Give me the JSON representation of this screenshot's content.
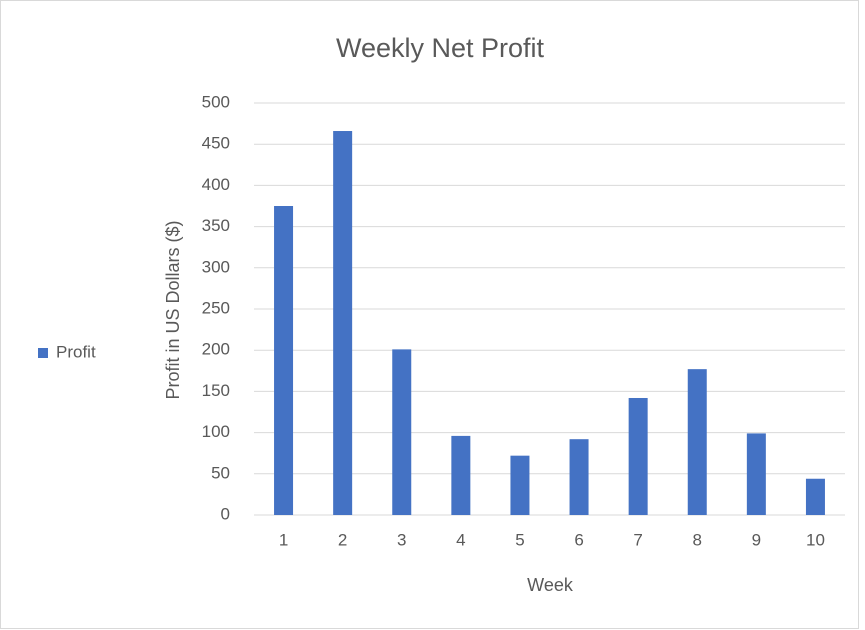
{
  "chart_data": {
    "type": "bar",
    "title": "Weekly Net Profit",
    "x_label": "Week",
    "y_label": "Profit in US Dollars ($)",
    "categories": [
      "1",
      "2",
      "3",
      "4",
      "5",
      "6",
      "7",
      "8",
      "9",
      "10"
    ],
    "series": [
      {
        "name": "Profit",
        "color": "#4472c4",
        "values": [
          375,
          466,
          201,
          96,
          72,
          92,
          142,
          177,
          99,
          44
        ]
      }
    ],
    "ylim": [
      0,
      500
    ],
    "yticks": [
      0,
      50,
      100,
      150,
      200,
      250,
      300,
      350,
      400,
      450,
      500
    ],
    "grid": true,
    "legend_position": "left"
  }
}
